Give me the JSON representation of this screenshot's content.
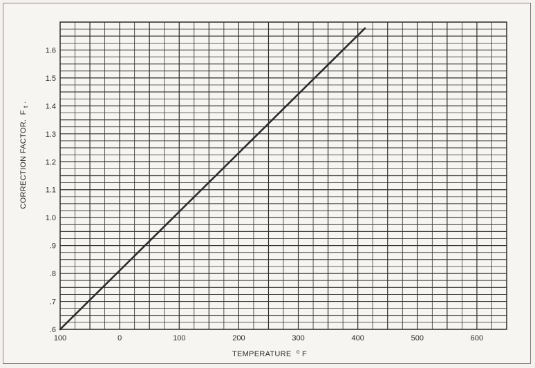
{
  "chart_data": {
    "type": "line",
    "title": "",
    "xlabel": "TEMPERATURE",
    "xlabel_unit_sup": "o",
    "xlabel_unit": "F",
    "ylabel": "CORRECTION FACTOR.",
    "ylabel_symbol": "F",
    "ylabel_sub": "t",
    "ylabel_end": ".",
    "xlim": [
      -100,
      650
    ],
    "ylim": [
      0.6,
      1.7
    ],
    "x_ticks": [
      {
        "value": -100,
        "label": "100"
      },
      {
        "value": 0,
        "label": "0"
      },
      {
        "value": 100,
        "label": "100"
      },
      {
        "value": 200,
        "label": "200"
      },
      {
        "value": 300,
        "label": "300"
      },
      {
        "value": 400,
        "label": "400"
      },
      {
        "value": 500,
        "label": "500"
      },
      {
        "value": 600,
        "label": "600"
      }
    ],
    "y_ticks": [
      {
        "value": 0.6,
        "label": ".6"
      },
      {
        "value": 0.7,
        "label": ".7"
      },
      {
        "value": 0.8,
        "label": ".8"
      },
      {
        "value": 0.9,
        "label": ".9"
      },
      {
        "value": 1.0,
        "label": "1.0"
      },
      {
        "value": 1.1,
        "label": "1.1"
      },
      {
        "value": 1.2,
        "label": "1.2"
      },
      {
        "value": 1.3,
        "label": "1.3"
      },
      {
        "value": 1.4,
        "label": "1.4"
      },
      {
        "value": 1.5,
        "label": "1.5"
      },
      {
        "value": 1.6,
        "label": "1.6"
      }
    ],
    "grid": true,
    "grid_minor_x_step": 25,
    "grid_minor_y_step": 0.025,
    "series": [
      {
        "x": [
          -100,
          412
        ],
        "y": [
          0.6,
          1.678
        ]
      }
    ],
    "colors": {
      "line": "#2b2b2b",
      "grid": "#2e2e2e",
      "background": "#f7f5f2"
    }
  }
}
